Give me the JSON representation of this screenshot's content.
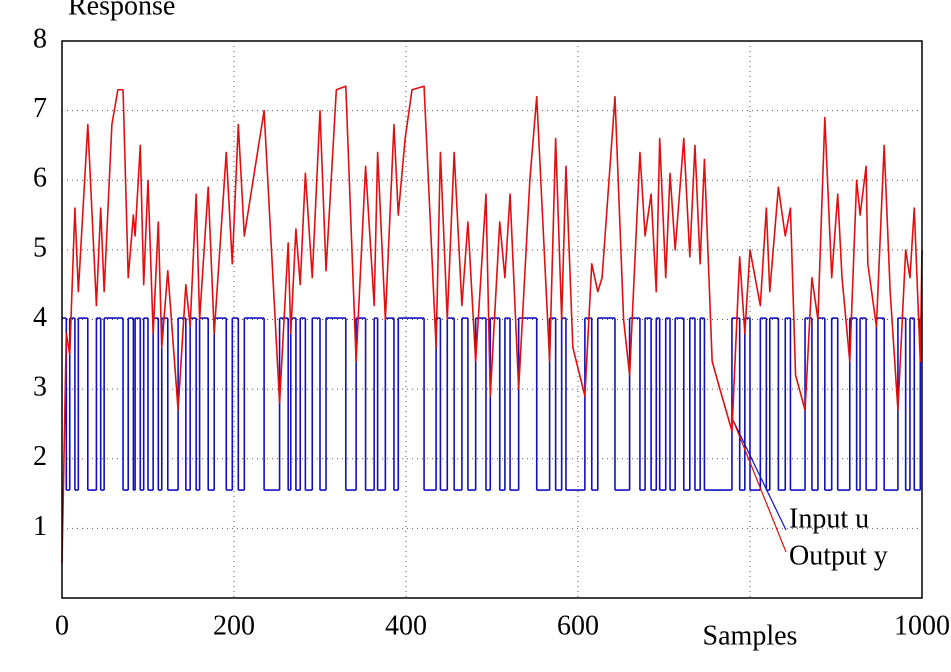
{
  "chart_data": {
    "type": "line",
    "ylabel": "Response",
    "xlabel": "Samples",
    "xlim": [
      0,
      1000
    ],
    "ylim": [
      0,
      8
    ],
    "xticks": [
      0,
      200,
      400,
      600,
      {
        "value": 800,
        "label": null
      },
      1000
    ],
    "yticks": [
      1,
      2,
      3,
      4,
      5,
      6,
      7,
      8
    ],
    "grid": true,
    "legend": "lower right",
    "series": [
      {
        "name": "Input u",
        "color": "#1010c0",
        "step": "post",
        "x": [
          0,
          5,
          9,
          15,
          19,
          30,
          40,
          45,
          49,
          71,
          77,
          83,
          85,
          91,
          95,
          100,
          106,
          112,
          116,
          123,
          135,
          144,
          149,
          156,
          160,
          170,
          177,
          191,
          198,
          205,
          212,
          235,
          253,
          263,
          266,
          272,
          277,
          283,
          291,
          300,
          307,
          330,
          342,
          353,
          363,
          367,
          376,
          386,
          391,
          421,
          435,
          440,
          448,
          456,
          465,
          472,
          481,
          493,
          498,
          509,
          515,
          521,
          531,
          552,
          567,
          574,
          581,
          586,
          608,
          616,
          623,
          643,
          660,
          672,
          678,
          685,
          691,
          695,
          702,
          707,
          713,
          723,
          730,
          736,
          742,
          747,
          779,
          788,
          794,
          800,
          812,
          819,
          823,
          833,
          841,
          847,
          864,
          872,
          879,
          887,
          895,
          902,
          916,
          924,
          928,
          935,
          947,
          956,
          972,
          981,
          986,
          991,
          998,
          1000
        ],
        "values": [
          4.02,
          1.55,
          4.02,
          1.55,
          4.02,
          1.55,
          4.02,
          1.55,
          4.02,
          1.55,
          4.02,
          1.55,
          4.02,
          1.55,
          4.02,
          1.55,
          4.02,
          1.55,
          4.02,
          1.55,
          4.02,
          1.55,
          4.02,
          1.55,
          4.02,
          1.55,
          4.02,
          1.55,
          4.02,
          1.55,
          4.02,
          1.55,
          4.02,
          1.55,
          4.02,
          1.55,
          4.02,
          1.55,
          4.02,
          1.55,
          4.02,
          1.55,
          4.02,
          1.55,
          4.02,
          1.55,
          4.02,
          1.55,
          4.02,
          1.55,
          4.02,
          1.55,
          4.02,
          1.55,
          4.02,
          1.55,
          4.02,
          1.55,
          4.02,
          1.55,
          4.02,
          1.55,
          4.02,
          1.55,
          4.02,
          1.55,
          4.02,
          1.55,
          4.02,
          1.55,
          4.02,
          1.55,
          4.02,
          1.55,
          4.02,
          1.55,
          4.02,
          1.55,
          4.02,
          1.55,
          4.02,
          1.55,
          4.02,
          1.55,
          4.02,
          1.55,
          4.02,
          1.55,
          4.02,
          1.55,
          4.02,
          1.55,
          4.02,
          1.55,
          4.02,
          1.55,
          4.02,
          1.55,
          4.02,
          1.55,
          4.02,
          1.55,
          4.02,
          1.55,
          4.02,
          1.55,
          4.02,
          1.55,
          4.02,
          1.55,
          4.02,
          1.55,
          4.02,
          4.02
        ]
      },
      {
        "name": "Output y",
        "color": "#e01010",
        "x": [
          0,
          5,
          9,
          15,
          19,
          30,
          40,
          45,
          49,
          58,
          65,
          71,
          77,
          83,
          85,
          91,
          95,
          100,
          106,
          112,
          116,
          123,
          135,
          144,
          149,
          156,
          160,
          170,
          177,
          191,
          198,
          205,
          212,
          235,
          253,
          263,
          266,
          272,
          277,
          283,
          291,
          300,
          307,
          319,
          330,
          342,
          353,
          363,
          367,
          376,
          386,
          391,
          399,
          407,
          421,
          435,
          440,
          448,
          456,
          465,
          472,
          481,
          493,
          498,
          509,
          515,
          521,
          531,
          544,
          552,
          567,
          574,
          581,
          586,
          594,
          608,
          616,
          623,
          628,
          643,
          653,
          660,
          672,
          678,
          685,
          691,
          695,
          702,
          707,
          713,
          723,
          730,
          736,
          742,
          747,
          756,
          765,
          779,
          788,
          794,
          800,
          812,
          819,
          823,
          833,
          841,
          847,
          853,
          864,
          872,
          879,
          887,
          895,
          902,
          907,
          916,
          924,
          928,
          935,
          937,
          947,
          956,
          963,
          972,
          981,
          986,
          991,
          998,
          1000
        ],
        "values": [
          0.5,
          3.8,
          3.5,
          5.6,
          4.4,
          6.8,
          4.2,
          5.6,
          4.4,
          6.8,
          7.3,
          7.3,
          4.6,
          5.5,
          5.2,
          6.5,
          4.5,
          6.0,
          3.8,
          5.4,
          3.6,
          4.7,
          2.7,
          4.5,
          3.9,
          5.8,
          4.0,
          5.9,
          3.8,
          6.4,
          4.8,
          6.8,
          5.2,
          7.0,
          2.8,
          5.1,
          3.8,
          5.3,
          4.5,
          6.1,
          4.6,
          7.0,
          4.7,
          7.3,
          7.35,
          3.4,
          6.2,
          4.2,
          6.4,
          4.0,
          6.8,
          5.5,
          6.6,
          7.3,
          7.35,
          3.6,
          6.4,
          4.0,
          6.4,
          4.2,
          5.4,
          3.4,
          5.8,
          2.9,
          5.4,
          4.6,
          5.8,
          3.0,
          6.0,
          7.2,
          3.4,
          6.6,
          4.0,
          6.2,
          3.6,
          2.9,
          4.8,
          4.4,
          4.6,
          7.2,
          4.0,
          3.2,
          6.4,
          5.2,
          5.8,
          4.4,
          6.6,
          4.6,
          6.1,
          5.0,
          6.6,
          4.9,
          6.5,
          4.8,
          6.3,
          3.4,
          3.0,
          2.4,
          4.9,
          3.8,
          5.0,
          4.2,
          5.6,
          4.4,
          5.9,
          5.2,
          5.6,
          3.2,
          2.7,
          4.6,
          4.0,
          6.9,
          4.6,
          5.8,
          4.6,
          3.4,
          6.0,
          5.5,
          6.2,
          4.8,
          3.9,
          6.5,
          4.4,
          2.7,
          5.0,
          4.6,
          5.6,
          3.4,
          5.0
        ]
      }
    ]
  }
}
